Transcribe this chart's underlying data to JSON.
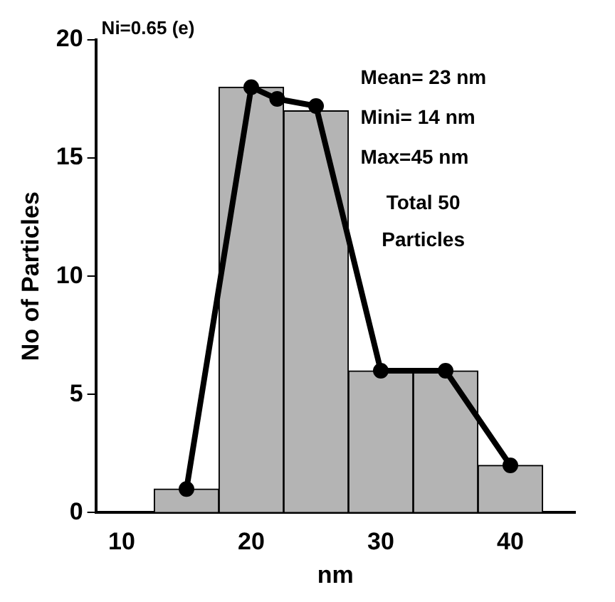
{
  "chart_data": {
    "type": "histogram",
    "xlabel": "nm",
    "ylabel": "No of Particles",
    "bins": [
      12.5,
      17.5,
      22.5,
      27.5,
      32.5,
      37.5,
      42.5
    ],
    "values": [
      1,
      18,
      17,
      6,
      6,
      2
    ],
    "color": "#b4b4b4",
    "series": [
      {
        "type": "line",
        "color": "#000000",
        "x": [
          15,
          20,
          22,
          25,
          30,
          35,
          40
        ],
        "values": [
          1,
          18,
          17.5,
          17.2,
          6,
          6,
          2
        ]
      }
    ],
    "marker": "circle",
    "xlim": [
      8,
      45
    ],
    "xticks": [
      10,
      20,
      30,
      40
    ],
    "ylim": [
      0,
      20
    ],
    "yticks": [
      0,
      5,
      10,
      15,
      20
    ],
    "grid": false,
    "annotations": [
      "Ni=0.65 (e)",
      "Mean= 23 nm",
      "Mini= 14 nm",
      "Max=45 nm",
      "Total 50",
      "Particles"
    ]
  }
}
